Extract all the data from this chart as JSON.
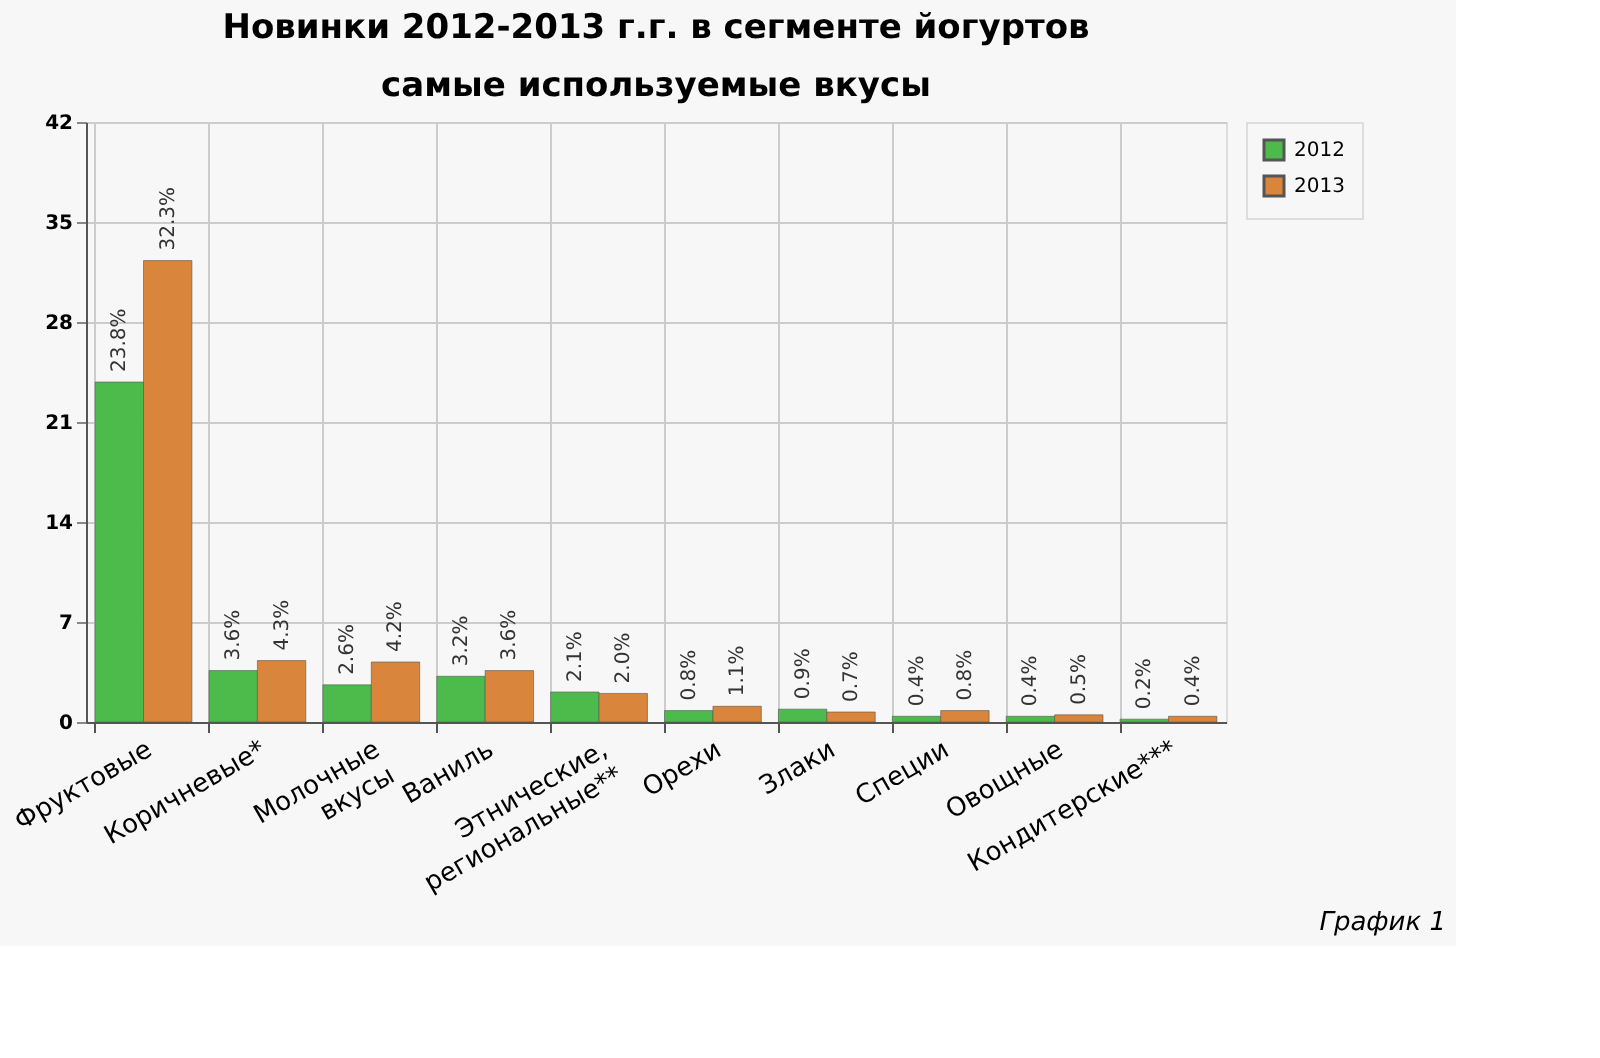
{
  "chart_data": {
    "type": "bar",
    "title": "Новинки 2012-2013 г.г.  в сегменте йогуртов",
    "subtitle": "самые используемые вкусы",
    "categories": [
      "Фруктовые",
      "Коричневые*",
      "Молочные\nвкусы",
      "Ваниль",
      "Этнические,\nрегиональные**",
      "Орехи",
      "Злаки",
      "Специи",
      "Овощные",
      "Кондитерские***"
    ],
    "series": [
      {
        "name": "2012",
        "color": "#4cbb4c",
        "values": [
          23.8,
          3.6,
          2.6,
          3.2,
          2.1,
          0.8,
          0.9,
          0.4,
          0.4,
          0.2
        ],
        "value_labels": [
          "23.8%",
          "3.6%",
          "2.6%",
          "3.2%",
          "2.1%",
          "0.8%",
          "0.9%",
          "0.4%",
          "0.4%",
          "0.2%"
        ]
      },
      {
        "name": "2013",
        "color": "#d9853b",
        "values": [
          32.3,
          4.3,
          4.2,
          3.6,
          2.0,
          1.1,
          0.7,
          0.8,
          0.5,
          0.4
        ],
        "value_labels": [
          "32.3%",
          "4.3%",
          "4.2%",
          "3.6%",
          "2.0%",
          "1.1%",
          "0.7%",
          "0.8%",
          "0.5%",
          "0.4%"
        ]
      }
    ],
    "ylim": [
      0,
      42
    ],
    "yticks": [
      0,
      7,
      14,
      21,
      28,
      35,
      42
    ],
    "grid": true,
    "legend": "top right",
    "annotations": [
      "График 1"
    ]
  }
}
